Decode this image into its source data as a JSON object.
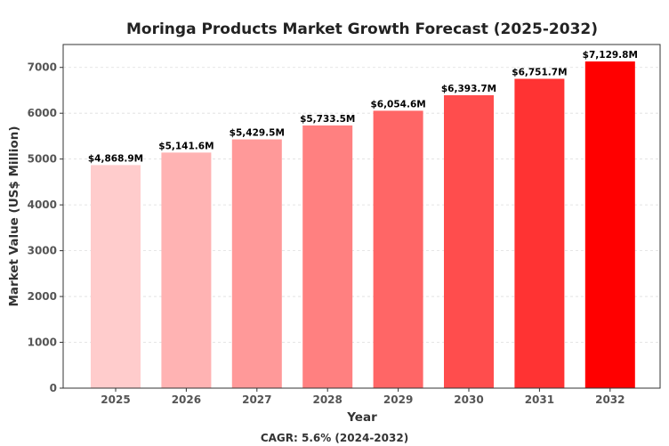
{
  "chart_data": {
    "type": "bar",
    "title": "Moringa Products Market Growth Forecast (2025-2032)",
    "xlabel": "Year",
    "ylabel": "Market Value (US$ Million)",
    "categories": [
      "2025",
      "2026",
      "2027",
      "2028",
      "2029",
      "2030",
      "2031",
      "2032"
    ],
    "values": [
      4868.9,
      5141.6,
      5429.5,
      5733.5,
      6054.6,
      6393.7,
      6751.7,
      7129.8
    ],
    "data_labels": [
      "$4,868.9M",
      "$5,141.6M",
      "$5,429.5M",
      "$5,733.5M",
      "$6,054.6M",
      "$6,393.7M",
      "$6,751.7M",
      "$7,129.8M"
    ],
    "bar_colors": [
      "#ffcccc",
      "#ffb3b3",
      "#ff9999",
      "#ff8080",
      "#ff6666",
      "#ff4d4d",
      "#ff3333",
      "#ff0000"
    ],
    "ylim": [
      0,
      7500
    ],
    "yticks": [
      0,
      1000,
      2000,
      3000,
      4000,
      5000,
      6000,
      7000
    ],
    "ytick_labels": [
      "0",
      "1000",
      "2000",
      "3000",
      "4000",
      "5000",
      "6000",
      "7000"
    ],
    "grid": true,
    "footnote": "CAGR: 5.6% (2024-2032)"
  }
}
